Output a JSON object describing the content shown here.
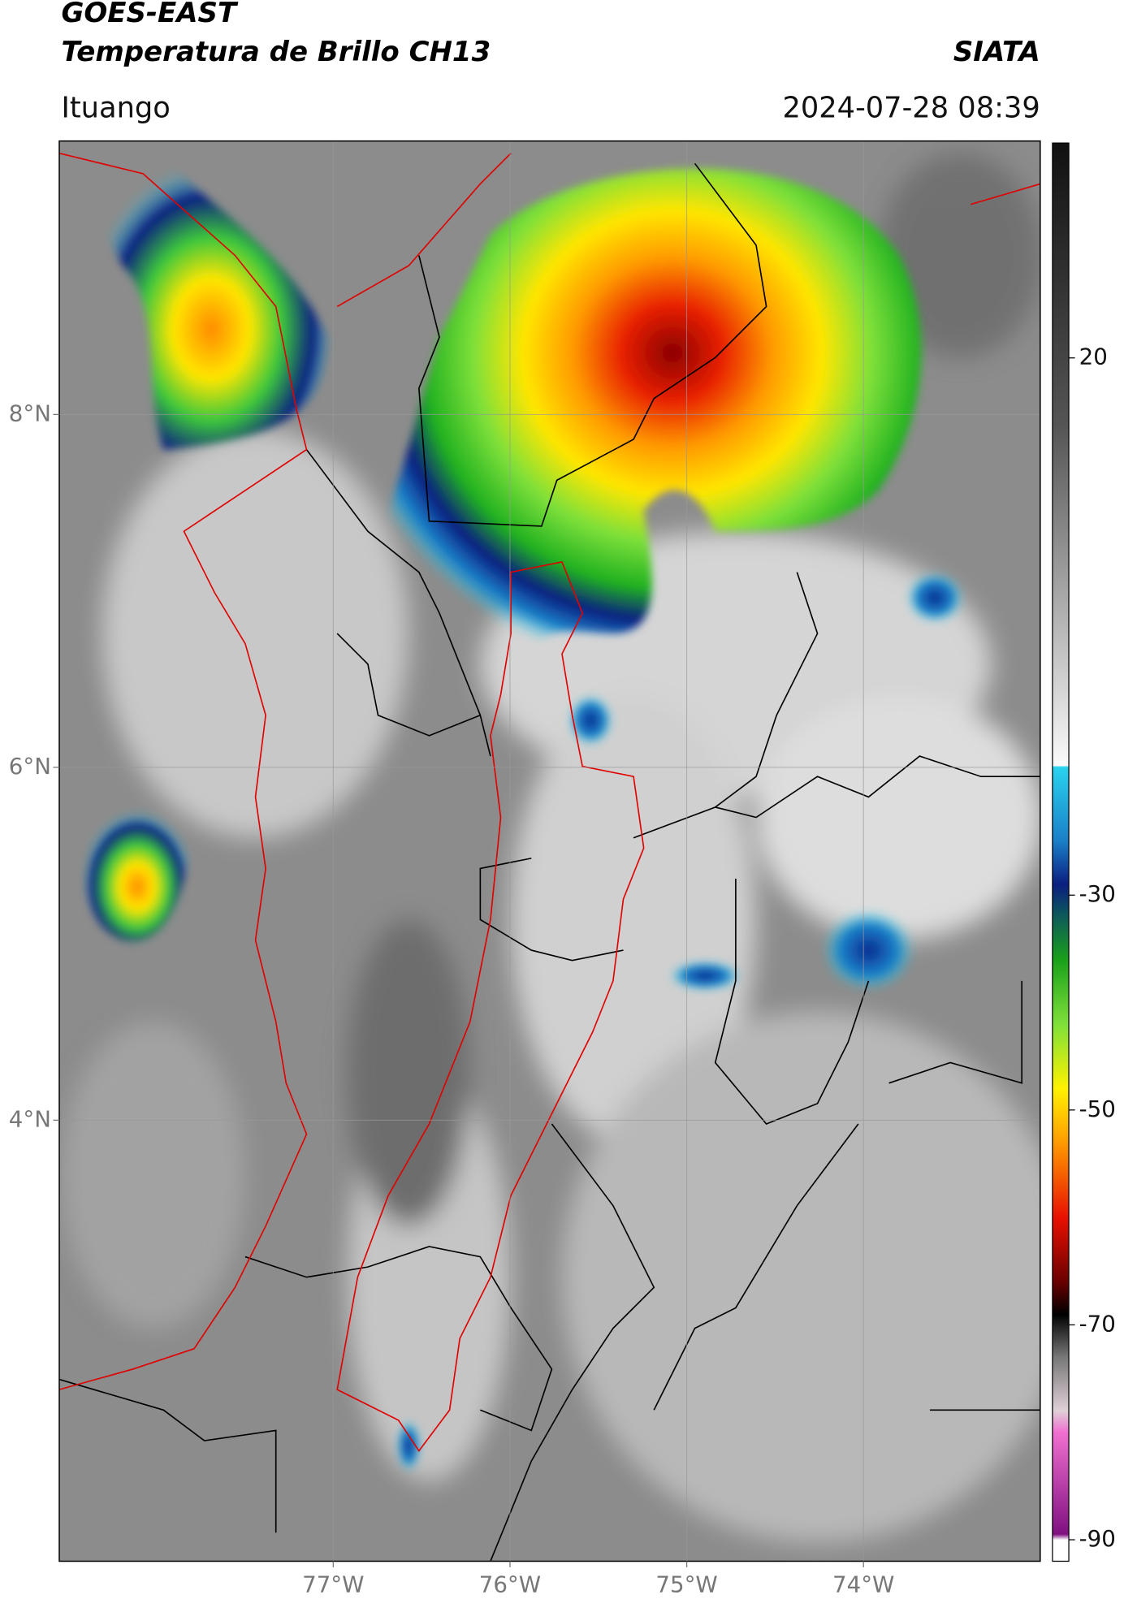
{
  "header": {
    "title": "GOES-EAST",
    "subtitle": "Temperatura de Brillo CH13",
    "source": "SIATA",
    "location": "Ituango",
    "datetime": "2024-07-28 08:39"
  },
  "map": {
    "xlim": [
      -78.55,
      -73.0
    ],
    "ylim": [
      1.5,
      9.55
    ],
    "xticks": [
      {
        "value": -77,
        "label": "77°W"
      },
      {
        "value": -76,
        "label": "76°W"
      },
      {
        "value": -75,
        "label": "75°W"
      },
      {
        "value": -74,
        "label": "74°W"
      }
    ],
    "yticks": [
      {
        "value": 8,
        "label": "8°N"
      },
      {
        "value": 6,
        "label": "6°N"
      },
      {
        "value": 4,
        "label": "4°N"
      }
    ],
    "grid": true
  },
  "colorbar": {
    "clim": [
      -92,
      40
    ],
    "ticks": [
      20,
      -30,
      -50,
      -70,
      -90
    ]
  }
}
